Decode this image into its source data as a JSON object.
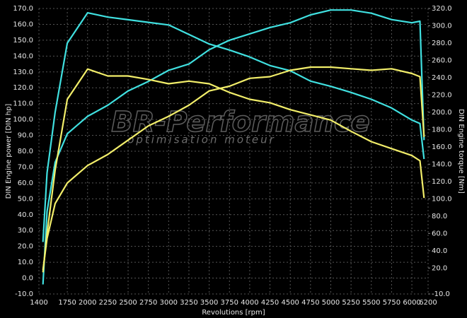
{
  "chart_data": {
    "type": "line",
    "x_label": "Revolutions [rpm]",
    "y_label": "DIN Engine power [DIN hp]",
    "y2_label": "DIN Engine torque [Nm]",
    "watermark_title": "BR-Performance",
    "watermark_subtitle": "optimisation moteur",
    "grid": true,
    "x": [
      1450,
      1500,
      1600,
      1750,
      2000,
      2250,
      2500,
      2750,
      3000,
      3250,
      3500,
      3750,
      4000,
      4250,
      4500,
      4750,
      5000,
      5250,
      5500,
      5750,
      6000,
      6100,
      6150
    ],
    "xlim": [
      1400,
      6200
    ],
    "xticks": [
      1400,
      1750,
      2000,
      2250,
      2500,
      2750,
      3000,
      3250,
      3500,
      3750,
      4000,
      4250,
      4500,
      4750,
      5000,
      5250,
      5500,
      5750,
      6000,
      6200
    ],
    "ylim": [
      -10,
      170
    ],
    "yticks": [
      {
        "value": -10,
        "label": "-10.0"
      },
      {
        "value": 0,
        "label": "0.0"
      },
      {
        "value": 10,
        "label": "10.0"
      },
      {
        "value": 20,
        "label": "20.0"
      },
      {
        "value": 30,
        "label": "30.0"
      },
      {
        "value": 40,
        "label": "40.0"
      },
      {
        "value": 50,
        "label": "50.0"
      },
      {
        "value": 60,
        "label": "60.0"
      },
      {
        "value": 70,
        "label": "70.0"
      },
      {
        "value": 80,
        "label": "80.0"
      },
      {
        "value": 90,
        "label": "90.0"
      },
      {
        "value": 100,
        "label": "100.0"
      },
      {
        "value": 110,
        "label": "110.0"
      },
      {
        "value": 120,
        "label": "120.0"
      },
      {
        "value": 130,
        "label": "130.0"
      },
      {
        "value": 140,
        "label": "140.0"
      },
      {
        "value": 150,
        "label": "150.0"
      },
      {
        "value": 160,
        "label": "160.0"
      },
      {
        "value": 170,
        "label": "170.0"
      }
    ],
    "y2lim": [
      -10,
      320
    ],
    "y2ticks": [
      {
        "value": -10,
        "label": "-10.0"
      },
      {
        "value": 20,
        "label": "20.0"
      },
      {
        "value": 40,
        "label": "40.0"
      },
      {
        "value": 60,
        "label": "60.0"
      },
      {
        "value": 80,
        "label": "80.0"
      },
      {
        "value": 100,
        "label": "100.0"
      },
      {
        "value": 120,
        "label": "120.0"
      },
      {
        "value": 140,
        "label": "140.0"
      },
      {
        "value": 160,
        "label": "160.0"
      },
      {
        "value": 180,
        "label": "180.0"
      },
      {
        "value": 200,
        "label": "200.0"
      },
      {
        "value": 220,
        "label": "220.0"
      },
      {
        "value": 240,
        "label": "240.0"
      },
      {
        "value": 260,
        "label": "260.0"
      },
      {
        "value": 280,
        "label": "280.0"
      },
      {
        "value": 300,
        "label": "300.0"
      },
      {
        "value": 320,
        "label": "320.0"
      }
    ],
    "series": [
      {
        "color": "#40e0e0",
        "axis": "y",
        "values": [
          -4,
          42,
          73,
          91,
          102,
          109,
          118,
          124,
          131,
          135,
          144,
          150,
          154,
          158,
          161,
          166,
          169,
          169,
          167,
          163,
          161,
          162,
          87
        ]
      },
      {
        "color": "#40e0e0",
        "axis": "y2",
        "values": [
          50,
          130,
          200,
          280,
          315,
          310,
          307,
          304,
          301,
          290,
          279,
          272,
          264,
          254,
          248,
          236,
          230,
          223,
          215,
          205,
          191,
          187,
          146
        ]
      },
      {
        "color": "#f2ee6a",
        "axis": "y",
        "values": [
          5,
          25,
          47,
          60,
          71,
          78,
          87,
          96,
          102,
          109,
          118,
          121,
          126,
          127,
          131,
          133,
          133,
          132,
          131,
          132,
          129,
          127,
          89
        ]
      },
      {
        "color": "#f2ee6a",
        "axis": "y2",
        "values": [
          15,
          60,
          133,
          215,
          250,
          242,
          242,
          238,
          233,
          236,
          233,
          223,
          215,
          211,
          203,
          197,
          191,
          178,
          166,
          158,
          150,
          144,
          101
        ]
      }
    ]
  }
}
